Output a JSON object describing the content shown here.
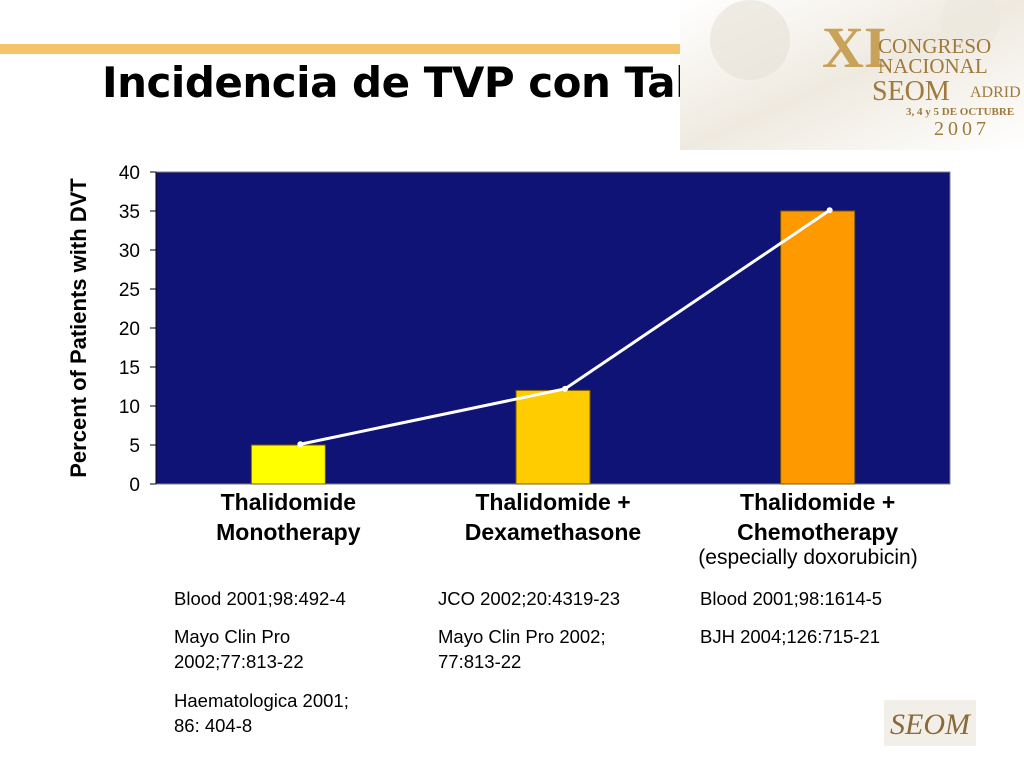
{
  "slide": {
    "title": "Incidencia de TVP con Talidomida"
  },
  "logo": {
    "roman_numeral": "XI",
    "line1": "CONGRESO",
    "line2": "NACIONAL",
    "line3": "SEOM",
    "line3b": "ADRID",
    "dates": "3, 4 y 5 DE OCTUBRE",
    "year": "2007",
    "footer_logo": "SEOM"
  },
  "chart_data": {
    "type": "bar",
    "categories": [
      "Thalidomide Monotherapy",
      "Thalidomide + Dexamethasone",
      "Thalidomide + Chemotherapy"
    ],
    "category_lines": [
      [
        "Thalidomide",
        "Monotherapy"
      ],
      [
        "Thalidomide +",
        "Dexamethasone"
      ],
      [
        "Thalidomide +",
        "Chemotherapy"
      ]
    ],
    "category_note": "(especially doxorubicin)",
    "values": [
      5,
      12,
      35
    ],
    "line_values": [
      5.1,
      12.2,
      35.1
    ],
    "ylabel": "Percent of Patients with DVT",
    "ylim": [
      0,
      40
    ],
    "yticks": [
      0,
      5,
      10,
      15,
      20,
      25,
      30,
      35,
      40
    ],
    "grid": false,
    "legend": "none",
    "colors": {
      "plot_background": "#0f1375",
      "bars": [
        "#ffff00",
        "#ffcc00",
        "#ff9900"
      ],
      "line": "#ffffff"
    }
  },
  "references": {
    "col1": [
      "Blood 2001;98:492-4",
      "Mayo Clin Pro\n2002;77:813-22",
      "Haematologica 2001;\n86: 404-8"
    ],
    "col2": [
      "JCO 2002;20:4319-23",
      "Mayo Clin Pro 2002;\n77:813-22"
    ],
    "col3": [
      "Blood 2001;98:1614-5",
      "BJH 2004;126:715-21"
    ]
  }
}
